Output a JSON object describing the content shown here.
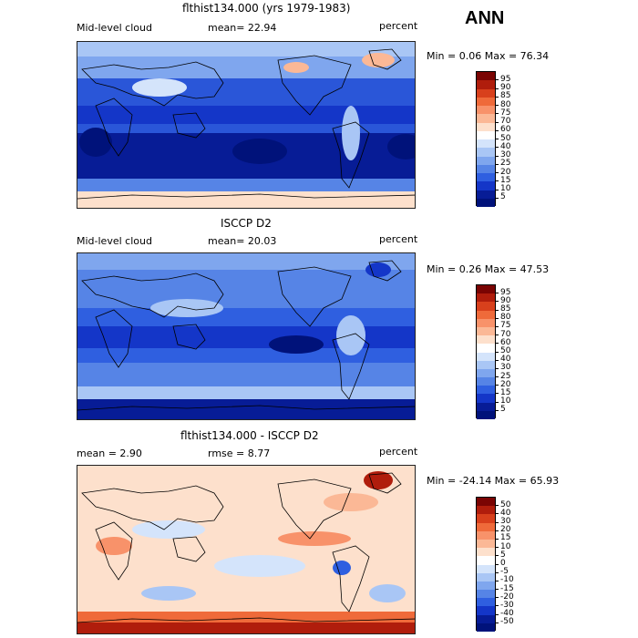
{
  "season": "ANN",
  "panels": [
    {
      "title": "flthist134.000 (yrs 1979-1983)",
      "left_label": "Mid-level cloud",
      "center_label": "mean=  22.94",
      "units": "percent",
      "minmax": "Min =    0.06  Max =   76.34",
      "colorbar": {
        "levels": [
          "95",
          "90",
          "85",
          "80",
          "75",
          "70",
          "60",
          "50",
          "40",
          "30",
          "25",
          "20",
          "15",
          "10",
          "5"
        ],
        "colors": [
          "#7a0403",
          "#b01d0c",
          "#d8401c",
          "#ef6a3a",
          "#f8926a",
          "#fbb896",
          "#fde0cc",
          "#ffffff",
          "#d4e4fb",
          "#a9c6f5",
          "#7fa6ee",
          "#5684e6",
          "#2f5fe0",
          "#1436c8",
          "#071c96",
          "#00127a"
        ]
      }
    },
    {
      "title": "ISCCP D2",
      "left_label": "Mid-level cloud",
      "center_label": "mean=  20.03",
      "units": "percent",
      "minmax": "Min =    0.26  Max =   47.53",
      "colorbar": {
        "levels": [
          "95",
          "90",
          "85",
          "80",
          "75",
          "70",
          "60",
          "50",
          "40",
          "30",
          "25",
          "20",
          "15",
          "10",
          "5"
        ],
        "colors": [
          "#7a0403",
          "#b01d0c",
          "#d8401c",
          "#ef6a3a",
          "#f8926a",
          "#fbb896",
          "#fde0cc",
          "#ffffff",
          "#d4e4fb",
          "#a9c6f5",
          "#7fa6ee",
          "#5684e6",
          "#2f5fe0",
          "#1436c8",
          "#071c96",
          "#00127a"
        ]
      }
    },
    {
      "title": "flthist134.000 - ISCCP D2",
      "left_label": "mean =    2.90",
      "center_label": "rmse =    8.77",
      "units": "percent",
      "minmax": "Min = -24.14  Max =   65.93",
      "colorbar": {
        "levels": [
          "50",
          "40",
          "30",
          "20",
          "15",
          "10",
          "5",
          "0",
          "-5",
          "-10",
          "-15",
          "-20",
          "-30",
          "-40",
          "-50"
        ],
        "colors": [
          "#7a0403",
          "#b01d0c",
          "#d8401c",
          "#ef6a3a",
          "#f8926a",
          "#fbb896",
          "#fde0cc",
          "#ffffff",
          "#d4e4fb",
          "#a9c6f5",
          "#7fa6ee",
          "#5684e6",
          "#2f5fe0",
          "#1436c8",
          "#071c96",
          "#00127a"
        ]
      }
    }
  ]
}
